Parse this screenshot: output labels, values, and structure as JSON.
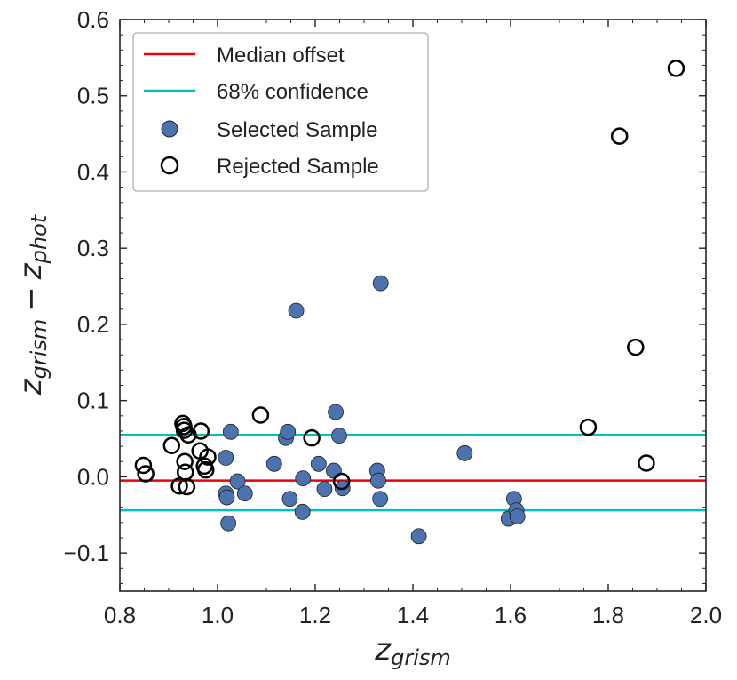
{
  "chart_data": {
    "type": "scatter",
    "xlabel": "z",
    "xlabel_sub": "grism",
    "ylabel_left": "z",
    "ylabel_left_sub": "grism",
    "ylabel_minus": "−",
    "ylabel_right": "z",
    "ylabel_right_sub": "phot",
    "xlim": [
      0.8,
      2.0
    ],
    "ylim": [
      -0.15,
      0.6
    ],
    "xticks": [
      0.8,
      1.0,
      1.2,
      1.4,
      1.6,
      1.8,
      2.0
    ],
    "xtick_labels": [
      "0.8",
      "1.0",
      "1.2",
      "1.4",
      "1.6",
      "1.8",
      "2.0"
    ],
    "yticks": [
      -0.1,
      0.0,
      0.1,
      0.2,
      0.3,
      0.4,
      0.5,
      0.6
    ],
    "ytick_labels": [
      "−0.1",
      "0.0",
      "0.1",
      "0.2",
      "0.3",
      "0.4",
      "0.5",
      "0.6"
    ],
    "grid": false,
    "legend_position": "top-left",
    "colors": {
      "median": "#e8000b",
      "confidence": "#00c0c0",
      "selected_fill": "#4c72b0",
      "rejected_edge": "#000000"
    },
    "lines": [
      {
        "name": "Median offset",
        "y": -0.005
      },
      {
        "name": "68% confidence",
        "y": 0.055
      },
      {
        "name": "68% confidence lower",
        "y": -0.044
      }
    ],
    "legend": [
      "Median offset",
      "68% confidence",
      "Selected Sample",
      "Rejected Sample"
    ],
    "series": [
      {
        "name": "Selected Sample",
        "points": [
          [
            1.017,
            0.025
          ],
          [
            1.017,
            -0.022
          ],
          [
            1.019,
            -0.027
          ],
          [
            1.022,
            -0.061
          ],
          [
            1.027,
            0.059
          ],
          [
            1.041,
            -0.006
          ],
          [
            1.056,
            -0.022
          ],
          [
            1.116,
            0.017
          ],
          [
            1.14,
            0.051
          ],
          [
            1.144,
            0.059
          ],
          [
            1.148,
            -0.029
          ],
          [
            1.161,
            0.218
          ],
          [
            1.174,
            -0.046
          ],
          [
            1.175,
            -0.002
          ],
          [
            1.207,
            0.017
          ],
          [
            1.219,
            -0.016
          ],
          [
            1.238,
            0.008
          ],
          [
            1.242,
            0.085
          ],
          [
            1.249,
            0.054
          ],
          [
            1.256,
            -0.015
          ],
          [
            1.327,
            0.008
          ],
          [
            1.329,
            -0.005
          ],
          [
            1.333,
            -0.029
          ],
          [
            1.334,
            0.254
          ],
          [
            1.412,
            -0.078
          ],
          [
            1.506,
            0.031
          ],
          [
            1.596,
            -0.055
          ],
          [
            1.607,
            -0.029
          ],
          [
            1.612,
            -0.044
          ],
          [
            1.614,
            -0.052
          ]
        ]
      },
      {
        "name": "Rejected Sample",
        "points": [
          [
            0.848,
            0.015
          ],
          [
            0.853,
            0.004
          ],
          [
            0.906,
            0.041
          ],
          [
            0.922,
            -0.012
          ],
          [
            0.929,
            0.07
          ],
          [
            0.931,
            0.066
          ],
          [
            0.932,
            0.061
          ],
          [
            0.933,
            0.02
          ],
          [
            0.934,
            0.006
          ],
          [
            0.937,
            -0.013
          ],
          [
            0.94,
            0.055
          ],
          [
            0.964,
            0.034
          ],
          [
            0.966,
            0.06
          ],
          [
            0.973,
            0.014
          ],
          [
            0.976,
            0.009
          ],
          [
            0.98,
            0.026
          ],
          [
            1.088,
            0.081
          ],
          [
            1.193,
            0.051
          ],
          [
            1.254,
            -0.006
          ],
          [
            1.759,
            0.065
          ],
          [
            1.823,
            0.447
          ],
          [
            1.856,
            0.17
          ],
          [
            1.878,
            0.018
          ],
          [
            1.939,
            0.536
          ]
        ]
      }
    ]
  }
}
